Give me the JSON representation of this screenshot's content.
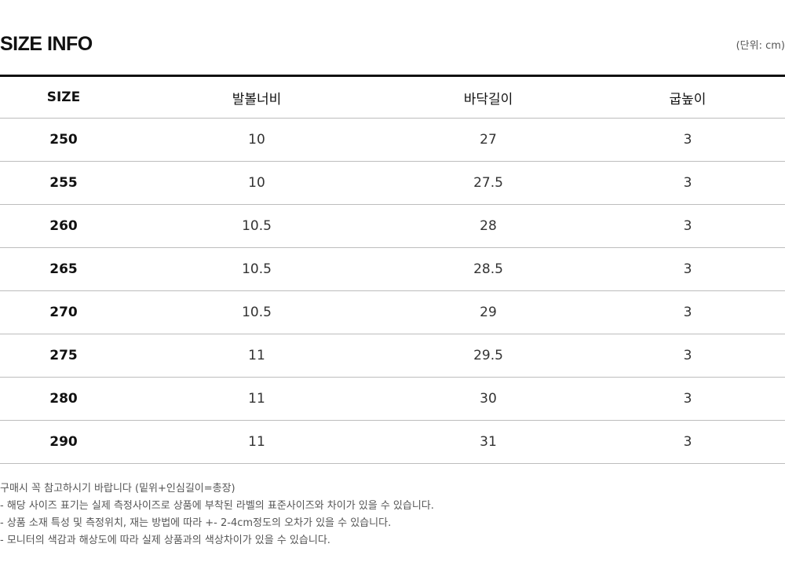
{
  "title": "SIZE INFO",
  "unit": "(단위: cm)",
  "table": {
    "headers": [
      "SIZE",
      "발볼너비",
      "바닥길이",
      "굽높이"
    ],
    "rows": [
      [
        "250",
        "10",
        "27",
        "3"
      ],
      [
        "255",
        "10",
        "27.5",
        "3"
      ],
      [
        "260",
        "10.5",
        "28",
        "3"
      ],
      [
        "265",
        "10.5",
        "28.5",
        "3"
      ],
      [
        "270",
        "10.5",
        "29",
        "3"
      ],
      [
        "275",
        "11",
        "29.5",
        "3"
      ],
      [
        "280",
        "11",
        "30",
        "3"
      ],
      [
        "290",
        "11",
        "31",
        "3"
      ]
    ]
  },
  "notes": [
    "구매시 꼭 참고하시기 바랍니다 (밑위+인심길이=총장)",
    "- 해당 사이즈 표기는 실제 측정사이즈로 상품에 부착된 라벨의 표준사이즈와 차이가 있을 수 있습니다.",
    "- 상품 소재 특성 및 측정위치, 재는 방법에 따라 +- 2-4cm정도의 오차가 있을 수 있습니다.",
    "- 모니터의 색감과 해상도에 따라 실제 상품과의 색상차이가 있을 수 있습니다."
  ]
}
